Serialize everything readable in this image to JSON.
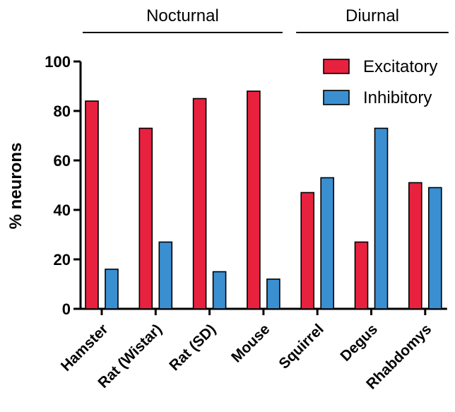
{
  "chart_data": {
    "type": "bar",
    "title": "",
    "xlabel": "",
    "ylabel": "% neurons",
    "ylim": [
      0,
      100
    ],
    "yticks": [
      0,
      20,
      40,
      60,
      80,
      100
    ],
    "grid": false,
    "legend_position": "top-right",
    "categories": [
      "Hamster",
      "Rat (Wistar)",
      "Rat (SD)",
      "Mouse",
      "Squirrel",
      "Degus",
      "Rhabdomys"
    ],
    "series": [
      {
        "name": "Excitatory",
        "color": "#e8213f",
        "values": [
          84,
          73,
          85,
          88,
          47,
          27,
          51
        ]
      },
      {
        "name": "Inhibitory",
        "color": "#3a8fd1",
        "values": [
          16,
          27,
          15,
          12,
          53,
          73,
          49
        ]
      }
    ],
    "groups": [
      {
        "label": "Nocturnal",
        "first": 0,
        "last": 3
      },
      {
        "label": "Diurnal",
        "first": 4,
        "last": 6
      }
    ]
  }
}
